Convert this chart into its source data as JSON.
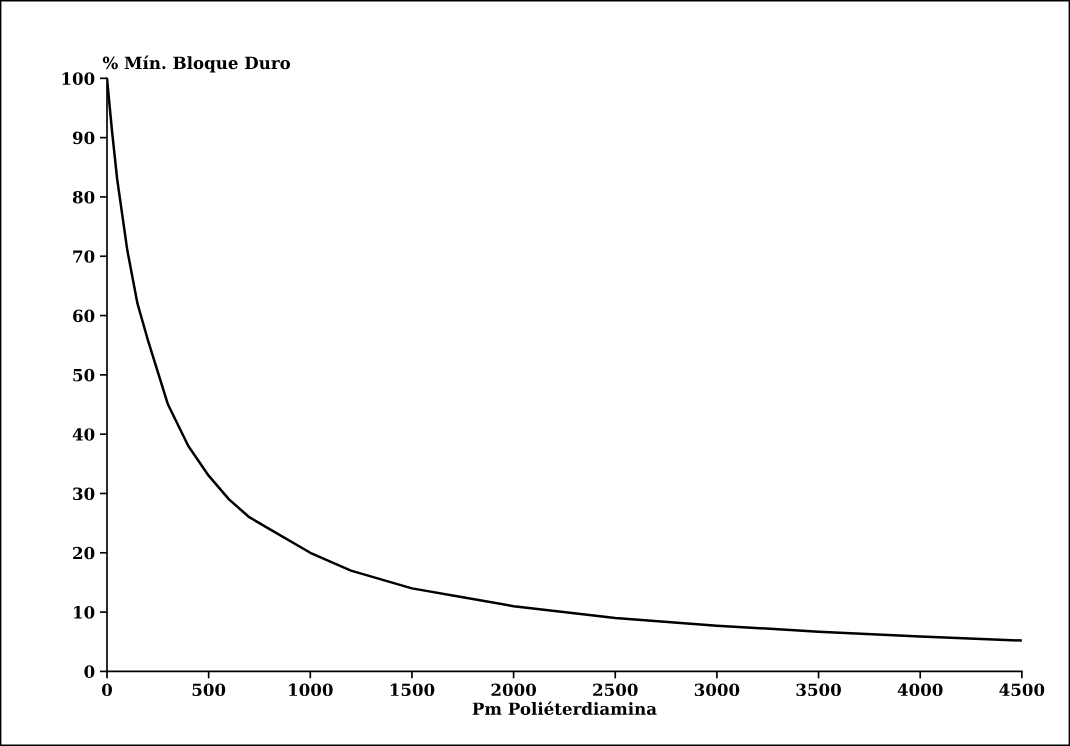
{
  "chart_data": {
    "type": "line",
    "xlabel": "Pm Poliéterdiamina",
    "ylabel": "% Mín. Bloque Duro",
    "x": [
      0,
      25,
      50,
      100,
      150,
      200,
      300,
      400,
      500,
      600,
      700,
      800,
      1000,
      1200,
      1500,
      1750,
      2000,
      2500,
      3000,
      3500,
      4000,
      4500
    ],
    "series": [
      {
        "color": "#000000",
        "values": [
          100,
          91,
          83,
          71,
          62,
          56,
          45,
          38,
          33,
          29,
          26,
          24,
          20,
          17,
          14,
          12.5,
          11,
          9,
          7.7,
          6.7,
          5.9,
          5.2
        ]
      }
    ],
    "xlim": [
      0,
      4500
    ],
    "xticks": [
      0,
      500,
      1000,
      1500,
      2000,
      2500,
      3000,
      3500,
      4000,
      4500
    ],
    "ylim": [
      0,
      100
    ],
    "yticks": [
      0,
      10,
      20,
      30,
      40,
      50,
      60,
      70,
      80,
      90,
      100
    ],
    "grid": false,
    "legend": false,
    "marker": "none",
    "line_style": "solid"
  }
}
